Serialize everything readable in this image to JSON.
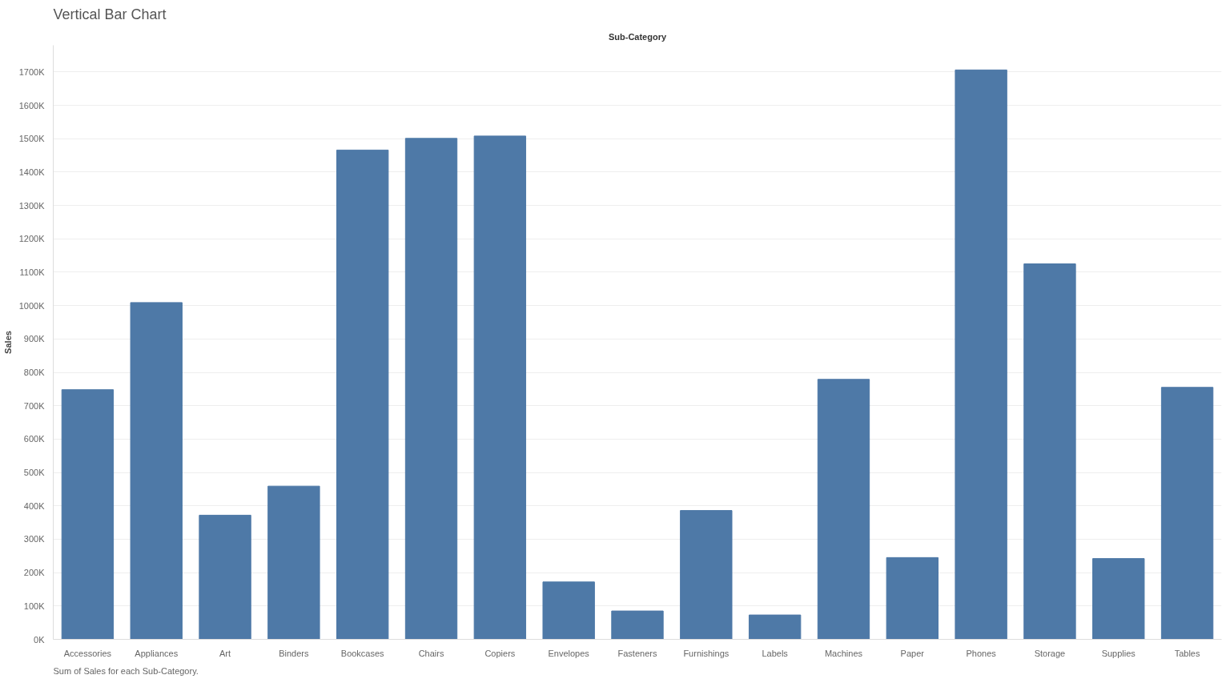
{
  "chart_data": {
    "type": "bar",
    "title": "Vertical Bar Chart",
    "xlabel": "Sub-Category",
    "ylabel": "Sales",
    "categories": [
      "Accessories",
      "Appliances",
      "Art",
      "Binders",
      "Bookcases",
      "Chairs",
      "Copiers",
      "Envelopes",
      "Fasteners",
      "Furnishings",
      "Labels",
      "Machines",
      "Paper",
      "Phones",
      "Storage",
      "Supplies",
      "Tables"
    ],
    "values": [
      748,
      1009,
      372,
      459,
      1466,
      1501,
      1508,
      172,
      85,
      386,
      73,
      779,
      245,
      1706,
      1125,
      242,
      755
    ],
    "color": "#4e79a7",
    "ylim": [
      0,
      1780
    ],
    "yticks": [
      {
        "value": 0,
        "label": "0K"
      },
      {
        "value": 100,
        "label": "100K"
      },
      {
        "value": 200,
        "label": "200K"
      },
      {
        "value": 300,
        "label": "300K"
      },
      {
        "value": 400,
        "label": "400K"
      },
      {
        "value": 500,
        "label": "500K"
      },
      {
        "value": 600,
        "label": "600K"
      },
      {
        "value": 700,
        "label": "700K"
      },
      {
        "value": 800,
        "label": "800K"
      },
      {
        "value": 900,
        "label": "900K"
      },
      {
        "value": 1000,
        "label": "1000K"
      },
      {
        "value": 1100,
        "label": "1100K"
      },
      {
        "value": 1200,
        "label": "1200K"
      },
      {
        "value": 1300,
        "label": "1300K"
      },
      {
        "value": 1400,
        "label": "1400K"
      },
      {
        "value": 1500,
        "label": "1500K"
      },
      {
        "value": 1600,
        "label": "1600K"
      },
      {
        "value": 1700,
        "label": "1700K"
      }
    ],
    "grid": "y",
    "annotations": [
      "Sum of Sales for each Sub-Category."
    ]
  }
}
